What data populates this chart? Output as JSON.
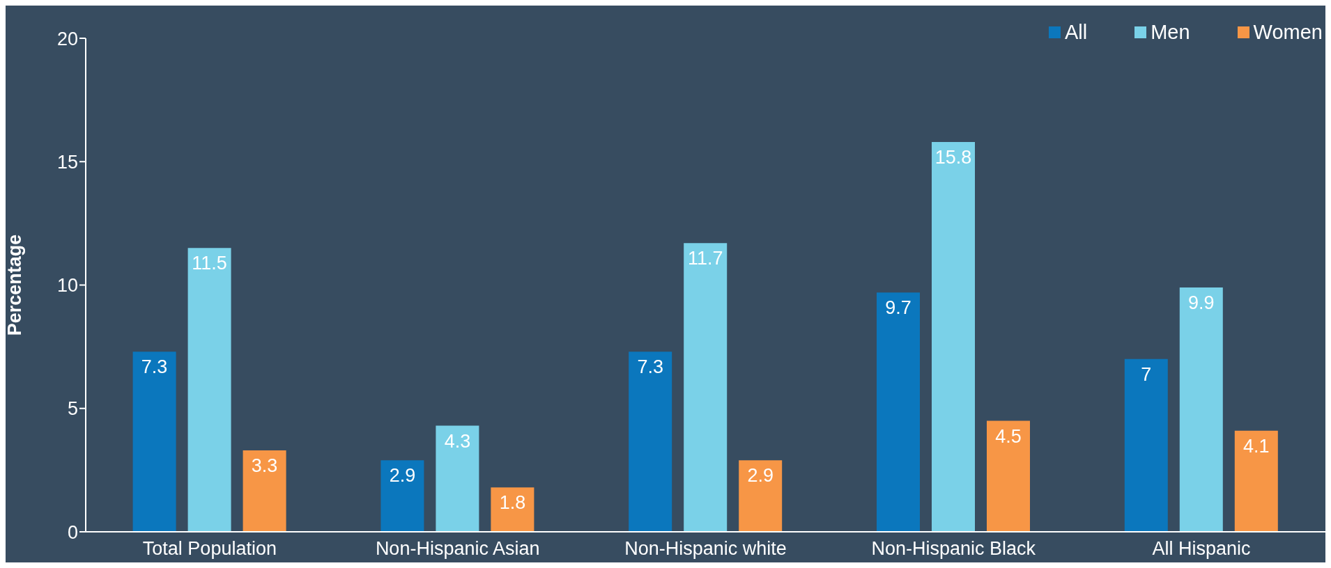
{
  "chart_data": {
    "type": "bar",
    "categories": [
      "Total Population",
      "Non-Hispanic Asian",
      "Non-Hispanic white",
      "Non-Hispanic Black",
      "All Hispanic"
    ],
    "series": [
      {
        "name": "All",
        "color": "#0b77bd",
        "values": [
          7.3,
          2.9,
          7.3,
          9.7,
          7
        ]
      },
      {
        "name": "Men",
        "color": "#7ad1e8",
        "values": [
          11.5,
          4.3,
          11.7,
          15.8,
          9.9
        ]
      },
      {
        "name": "Women",
        "color": "#f79646",
        "values": [
          3.3,
          1.8,
          2.9,
          4.5,
          4.1
        ]
      }
    ],
    "ylabel": "Percentage",
    "ylim": [
      0,
      20
    ],
    "yticks": [
      0,
      5,
      10,
      15,
      20
    ],
    "legend": "top right",
    "data_labels": true
  }
}
